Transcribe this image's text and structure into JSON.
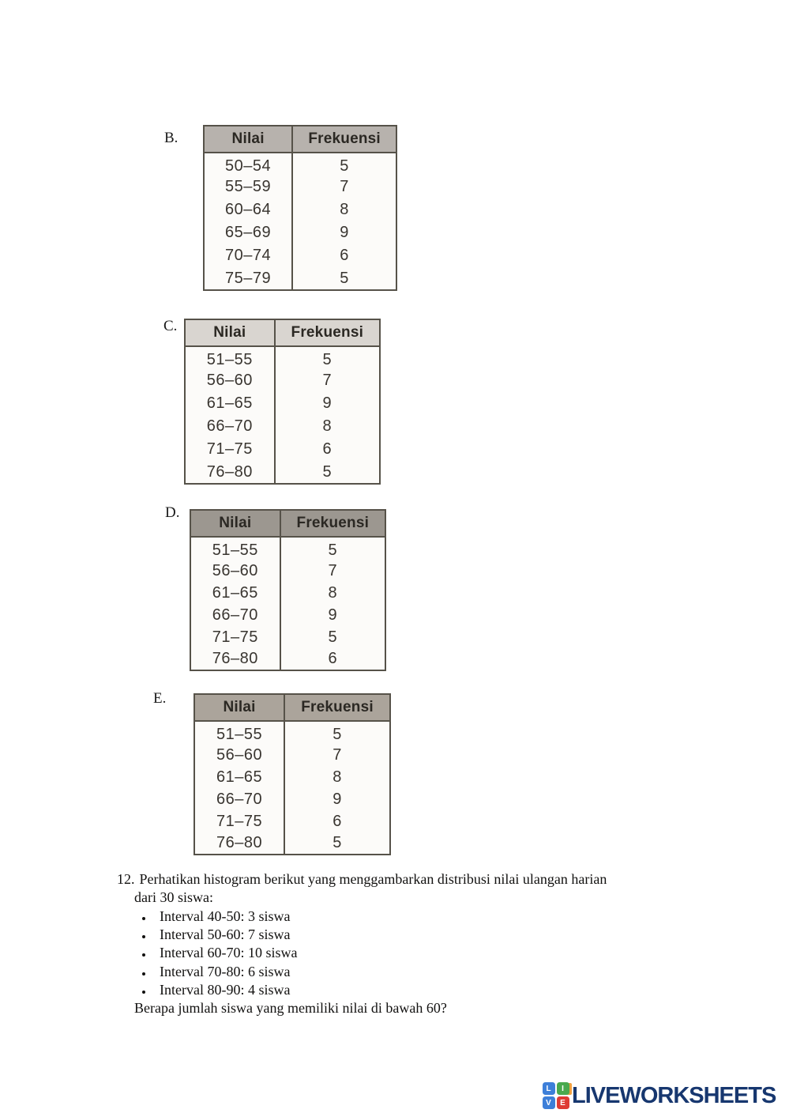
{
  "options": [
    {
      "label": "B.",
      "table": {
        "headers": [
          "Nilai",
          "Frekuensi"
        ],
        "header_bg": "#b7b2ad",
        "rows": [
          [
            "50–54",
            "5"
          ],
          [
            "55–59",
            "7"
          ],
          [
            "60–64",
            "8"
          ],
          [
            "65–69",
            "9"
          ],
          [
            "70–74",
            "6"
          ],
          [
            "75–79",
            "5"
          ]
        ]
      }
    },
    {
      "label": "C.",
      "table": {
        "headers": [
          "Nilai",
          "Frekuensi"
        ],
        "header_bg": "#d9d5d0",
        "rows": [
          [
            "51–55",
            "5"
          ],
          [
            "56–60",
            "7"
          ],
          [
            "61–65",
            "9"
          ],
          [
            "66–70",
            "8"
          ],
          [
            "71–75",
            "6"
          ],
          [
            "76–80",
            "5"
          ]
        ]
      }
    },
    {
      "label": "D.",
      "table": {
        "headers": [
          "Nilai",
          "Frekuensi"
        ],
        "header_bg": "#9c9790",
        "rows": [
          [
            "51–55",
            "5"
          ],
          [
            "56–60",
            "7"
          ],
          [
            "61–65",
            "8"
          ],
          [
            "66–70",
            "9"
          ],
          [
            "71–75",
            "5"
          ],
          [
            "76–80",
            "6"
          ]
        ]
      }
    },
    {
      "label": "E.",
      "table": {
        "headers": [
          "Nilai",
          "Frekuensi"
        ],
        "header_bg": "#aba49b",
        "rows": [
          [
            "51–55",
            "5"
          ],
          [
            "56–60",
            "7"
          ],
          [
            "61–65",
            "8"
          ],
          [
            "66–70",
            "9"
          ],
          [
            "71–75",
            "6"
          ],
          [
            "76–80",
            "5"
          ]
        ]
      }
    }
  ],
  "question": {
    "number": "12.",
    "lines": [
      "Perhatikan histogram berikut yang menggambarkan distribusi nilai ulangan harian",
      "dari 30 siswa:"
    ],
    "bullets": [
      "Interval 40-50: 3 siswa",
      "Interval 50-60: 7 siswa",
      "Interval 60-70: 10 siswa",
      "Interval 70-80: 6 siswa",
      "Interval 80-90: 4 siswa"
    ],
    "closing": "Berapa jumlah siswa yang memiliki nilai di bawah 60?"
  },
  "footer": {
    "brand": "LIVEWORKSHEETS",
    "brand_color": "#17376f",
    "accent_orange": "#f0a13e",
    "tiles": [
      {
        "letter": "L",
        "color": "#3d7fd9"
      },
      {
        "letter": "I",
        "color": "#49a94e"
      },
      {
        "letter": "V",
        "color": "#3d7fd9"
      },
      {
        "letter": "E",
        "color": "#de3b34"
      }
    ]
  }
}
